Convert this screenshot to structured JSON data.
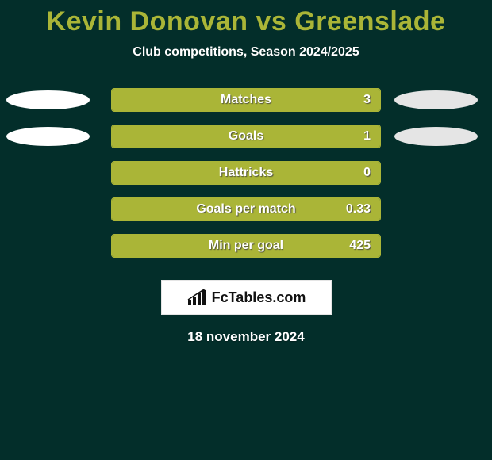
{
  "background_color": "#032e2a",
  "title": {
    "text": "Kevin Donovan vs Greenslade",
    "color": "#aab537",
    "fontsize": 34
  },
  "subtitle": {
    "text": "Club competitions, Season 2024/2025",
    "color": "#ffffff",
    "fontsize": 16
  },
  "player_colors": {
    "left": "#ffffff",
    "right": "#e5e5e5"
  },
  "bar_style": {
    "track_width": 340,
    "track_height": 30,
    "fill_color": "#aab537",
    "border_color": "#aab537",
    "label_color": "#ffffff",
    "label_fontsize": 16
  },
  "stats": [
    {
      "label": "Matches",
      "value": "3",
      "fill_pct": 100,
      "left_ellipse": true,
      "right_ellipse": true
    },
    {
      "label": "Goals",
      "value": "1",
      "fill_pct": 100,
      "left_ellipse": true,
      "right_ellipse": true
    },
    {
      "label": "Hattricks",
      "value": "0",
      "fill_pct": 100,
      "left_ellipse": false,
      "right_ellipse": false
    },
    {
      "label": "Goals per match",
      "value": "0.33",
      "fill_pct": 100,
      "left_ellipse": false,
      "right_ellipse": false
    },
    {
      "label": "Min per goal",
      "value": "425",
      "fill_pct": 100,
      "left_ellipse": false,
      "right_ellipse": false
    }
  ],
  "logo": {
    "text": "FcTables.com",
    "icon_color": "#111111"
  },
  "date": "18 november 2024"
}
